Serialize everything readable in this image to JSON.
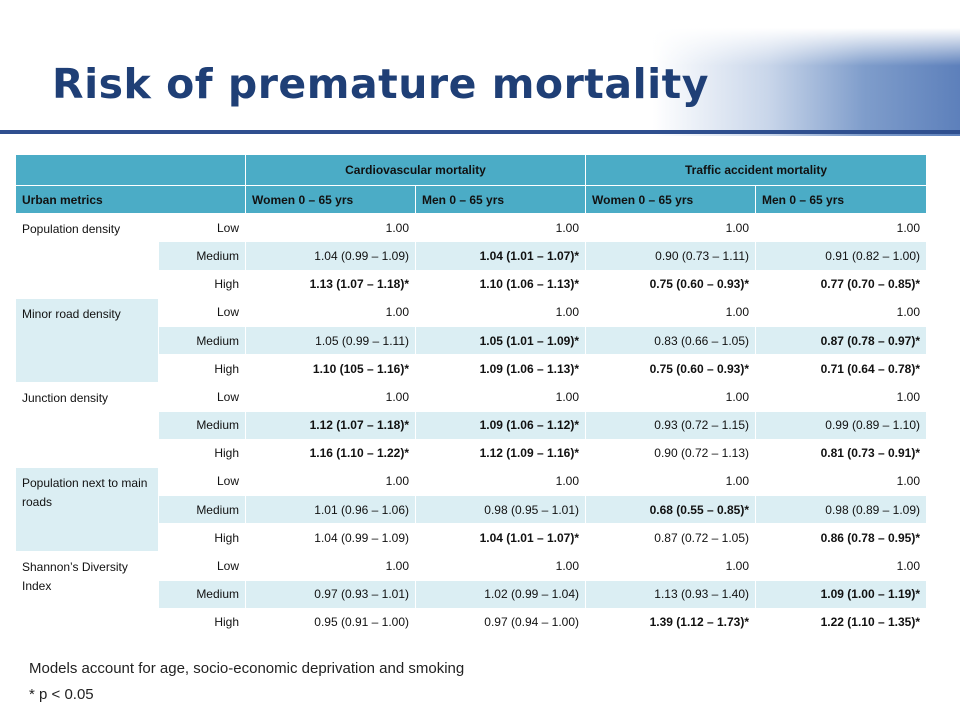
{
  "slide": {
    "title": "Risk of premature mortality",
    "accent_color": "#1f3f76",
    "header_color": "#4bacc6",
    "stripe_color": "#dbeef3"
  },
  "table": {
    "group_headers": [
      "Cardiovascular mortality",
      "Traffic accident mortality"
    ],
    "column_headers": [
      "Urban metrics",
      "Women 0 – 65 yrs",
      "Men 0 – 65 yrs",
      "Women 0 – 65 yrs",
      "Men 0 – 65 yrs"
    ],
    "groups": [
      {
        "metric": "Population density",
        "rows": [
          {
            "level": "Low",
            "cells": [
              {
                "v": "1.00",
                "b": false
              },
              {
                "v": "1.00",
                "b": false
              },
              {
                "v": "1.00",
                "b": false
              },
              {
                "v": "1.00",
                "b": false
              }
            ]
          },
          {
            "level": "Medium",
            "cells": [
              {
                "v": "1.04 (0.99 – 1.09)",
                "b": false
              },
              {
                "v": "1.04 (1.01 – 1.07)*",
                "b": true
              },
              {
                "v": "0.90 (0.73 – 1.11)",
                "b": false
              },
              {
                "v": "0.91 (0.82 – 1.00)",
                "b": false
              }
            ]
          },
          {
            "level": "High",
            "cells": [
              {
                "v": "1.13 (1.07 – 1.18)*",
                "b": true
              },
              {
                "v": "1.10 (1.06 – 1.13)*",
                "b": true
              },
              {
                "v": "0.75 (0.60 – 0.93)*",
                "b": true
              },
              {
                "v": "0.77 (0.70 – 0.85)*",
                "b": true
              }
            ]
          }
        ]
      },
      {
        "metric": "Minor road density",
        "rows": [
          {
            "level": "Low",
            "cells": [
              {
                "v": "1.00",
                "b": false
              },
              {
                "v": "1.00",
                "b": false
              },
              {
                "v": "1.00",
                "b": false
              },
              {
                "v": "1.00",
                "b": false
              }
            ]
          },
          {
            "level": "Medium",
            "cells": [
              {
                "v": "1.05 (0.99 – 1.11)",
                "b": false
              },
              {
                "v": "1.05 (1.01 – 1.09)*",
                "b": true
              },
              {
                "v": "0.83 (0.66 – 1.05)",
                "b": false
              },
              {
                "v": "0.87 (0.78 – 0.97)*",
                "b": true
              }
            ]
          },
          {
            "level": "High",
            "cells": [
              {
                "v": "1.10 (105 – 1.16)*",
                "b": true
              },
              {
                "v": "1.09 (1.06 – 1.13)*",
                "b": true
              },
              {
                "v": "0.75 (0.60 – 0.93)*",
                "b": true
              },
              {
                "v": "0.71 (0.64 – 0.78)*",
                "b": true
              }
            ]
          }
        ]
      },
      {
        "metric": "Junction density",
        "rows": [
          {
            "level": "Low",
            "cells": [
              {
                "v": "1.00",
                "b": false
              },
              {
                "v": "1.00",
                "b": false
              },
              {
                "v": "1.00",
                "b": false
              },
              {
                "v": "1.00",
                "b": false
              }
            ]
          },
          {
            "level": "Medium",
            "cells": [
              {
                "v": "1.12 (1.07 – 1.18)*",
                "b": true
              },
              {
                "v": "1.09 (1.06 – 1.12)*",
                "b": true
              },
              {
                "v": "0.93 (0.72 – 1.15)",
                "b": false
              },
              {
                "v": "0.99 (0.89 – 1.10)",
                "b": false
              }
            ]
          },
          {
            "level": "High",
            "cells": [
              {
                "v": "1.16 (1.10 – 1.22)*",
                "b": true
              },
              {
                "v": "1.12 (1.09 – 1.16)*",
                "b": true
              },
              {
                "v": "0.90 (0.72 – 1.13)",
                "b": false
              },
              {
                "v": "0.81 (0.73 – 0.91)*",
                "b": true
              }
            ]
          }
        ]
      },
      {
        "metric": "Population next to main roads",
        "rows": [
          {
            "level": "Low",
            "cells": [
              {
                "v": "1.00",
                "b": false
              },
              {
                "v": "1.00",
                "b": false
              },
              {
                "v": "1.00",
                "b": false
              },
              {
                "v": "1.00",
                "b": false
              }
            ]
          },
          {
            "level": "Medium",
            "cells": [
              {
                "v": "1.01 (0.96 – 1.06)",
                "b": false
              },
              {
                "v": "0.98 (0.95 – 1.01)",
                "b": false
              },
              {
                "v": "0.68 (0.55 – 0.85)*",
                "b": true
              },
              {
                "v": "0.98 (0.89 – 1.09)",
                "b": false
              }
            ]
          },
          {
            "level": "High",
            "cells": [
              {
                "v": "1.04 (0.99 – 1.09)",
                "b": false
              },
              {
                "v": "1.04 (1.01 – 1.07)*",
                "b": true
              },
              {
                "v": "0.87 (0.72 – 1.05)",
                "b": false
              },
              {
                "v": "0.86 (0.78 – 0.95)*",
                "b": true
              }
            ]
          }
        ]
      },
      {
        "metric": "Shannon’s Diversity Index",
        "rows": [
          {
            "level": "Low",
            "cells": [
              {
                "v": "1.00",
                "b": false
              },
              {
                "v": "1.00",
                "b": false
              },
              {
                "v": "1.00",
                "b": false
              },
              {
                "v": "1.00",
                "b": false
              }
            ]
          },
          {
            "level": "Medium",
            "cells": [
              {
                "v": "0.97 (0.93 – 1.01)",
                "b": false
              },
              {
                "v": "1.02 (0.99 – 1.04)",
                "b": false
              },
              {
                "v": "1.13 (0.93 – 1.40)",
                "b": false
              },
              {
                "v": "1.09 (1.00 – 1.19)*",
                "b": true
              }
            ]
          },
          {
            "level": "High",
            "cells": [
              {
                "v": "0.95 (0.91 – 1.00)",
                "b": false
              },
              {
                "v": "0.97 (0.94 – 1.00)",
                "b": false
              },
              {
                "v": "1.39 (1.12 – 1.73)*",
                "b": true
              },
              {
                "v": "1.22 (1.10 – 1.35)*",
                "b": true
              }
            ]
          }
        ]
      }
    ]
  },
  "footnotes": {
    "models": "Models  account for age, socio-economic deprivation and smoking",
    "significance": "* p < 0.05"
  }
}
